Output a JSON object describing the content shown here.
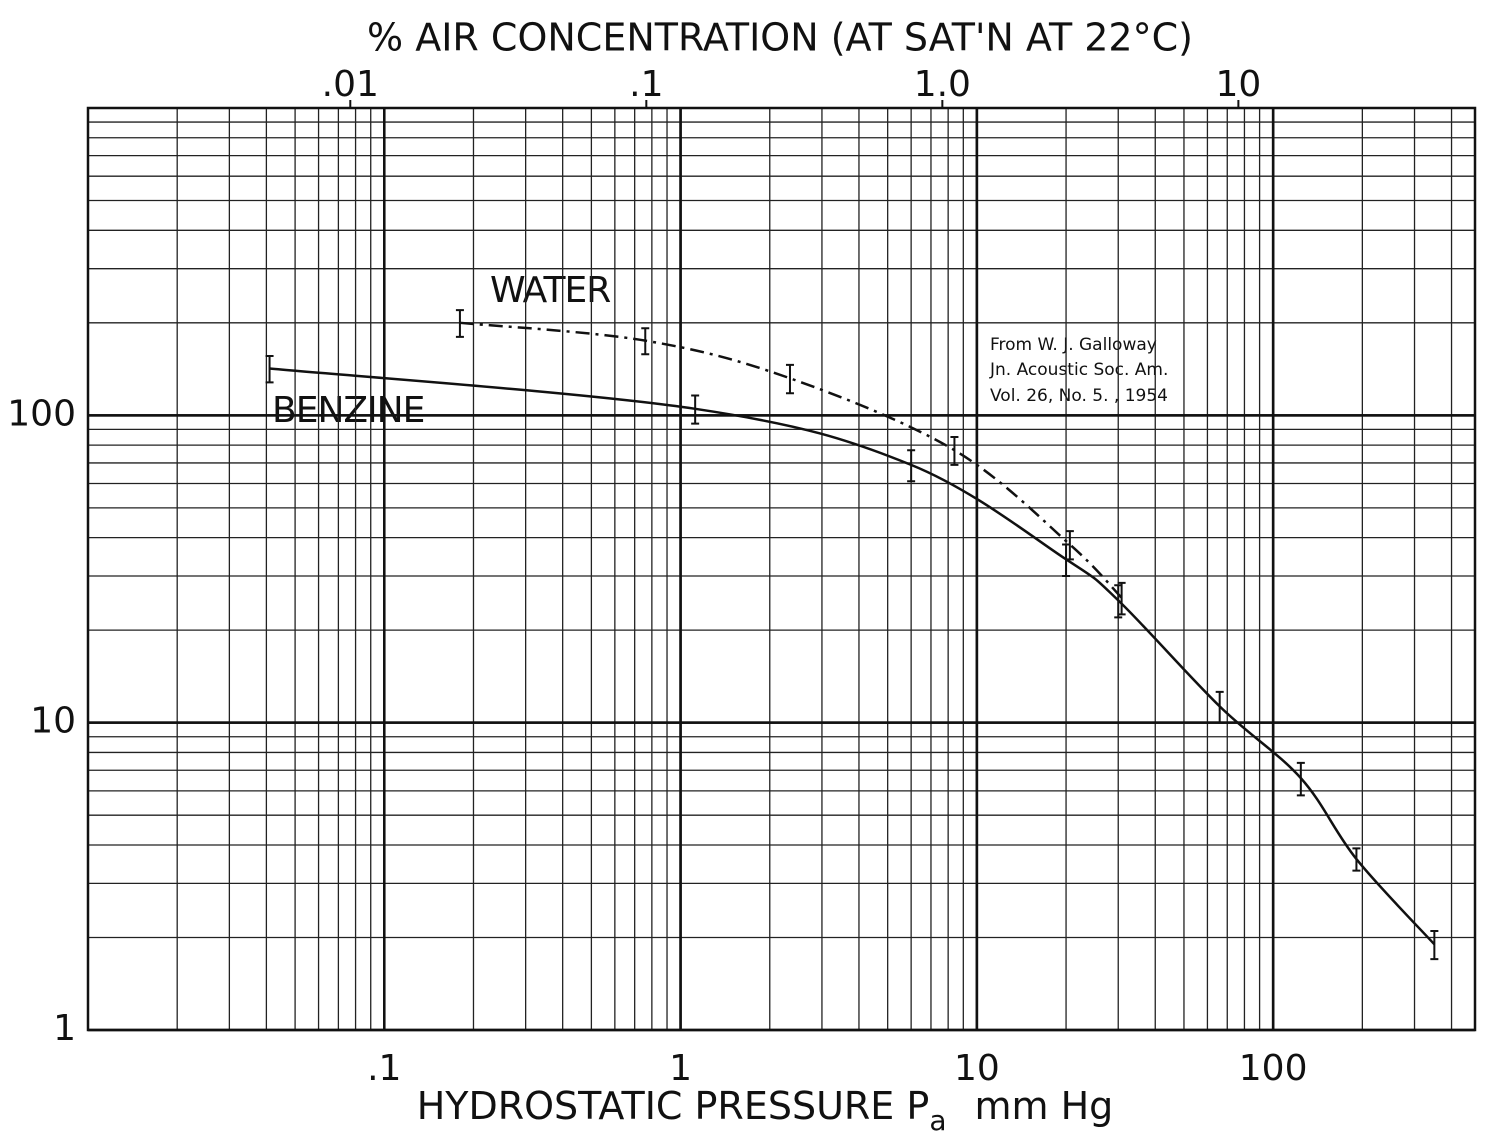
{
  "chart_data": {
    "type": "line",
    "top_label": "% AIR CONCENTRATION (AT SAT'N AT 22°C)",
    "x_label": {
      "text": "HYDROSTATIC PRESSURE P",
      "subscript": "a",
      "unit": "mm Hg"
    },
    "xscale": "log",
    "yscale": "log",
    "grid": true,
    "xlim": [
      0.01,
      480
    ],
    "xticks": [
      {
        "value": 0.1,
        "label": ".1"
      },
      1,
      10,
      100
    ],
    "x2lim": [
      0.0013,
      63
    ],
    "x2ticks": [
      {
        "value": 0.01,
        "label": ".01"
      },
      {
        "value": 0.1,
        "label": ".1"
      },
      {
        "value": 1,
        "label": "1.0"
      },
      10
    ],
    "ylim": [
      1,
      1000
    ],
    "yticks": [
      1,
      10,
      100
    ],
    "annotations": [
      "WATER",
      "BENZINE",
      "From W. J. Galloway",
      "Jn. Acoustic Soc. Am.",
      "Vol. 26, No. 5. , 1954"
    ],
    "series": [
      {
        "name": "WATER",
        "color": "#111111",
        "line_style": "dashdot",
        "x": [
          0.18,
          0.76,
          2.34,
          8.4,
          20.6,
          30.8
        ],
        "values": [
          200,
          175,
          132,
          77,
          38,
          25.5
        ],
        "errors": [
          20,
          17,
          14,
          8,
          4,
          3
        ]
      },
      {
        "name": "BENZINE",
        "color": "#111111",
        "line_style": "solid",
        "x": [
          0.041,
          1.12,
          6.0,
          20.0,
          30.0,
          66,
          124,
          191,
          350
        ],
        "values": [
          142,
          105,
          69,
          34,
          25,
          11.3,
          6.6,
          3.6,
          1.9
        ],
        "errors": [
          14,
          11,
          8,
          4,
          3,
          1.3,
          0.8,
          0.3,
          0.2
        ]
      }
    ]
  }
}
